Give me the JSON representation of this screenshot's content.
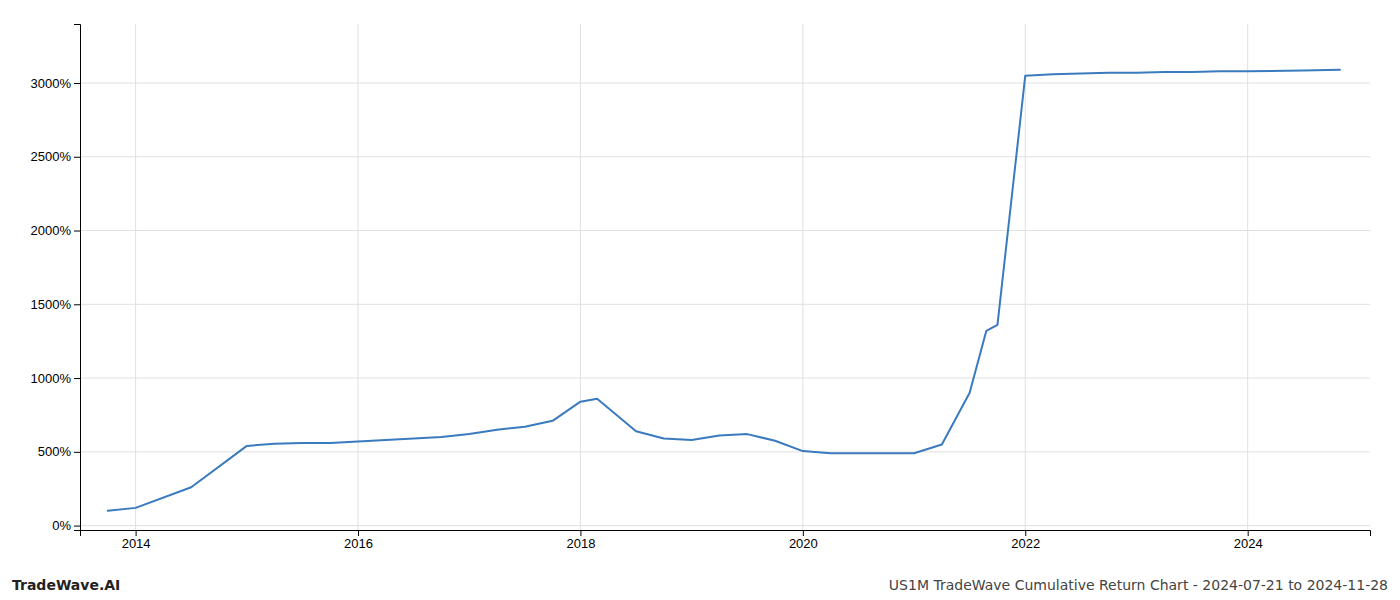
{
  "chart_data": {
    "type": "line",
    "x": [
      2013.75,
      2014.0,
      2014.5,
      2015.0,
      2015.25,
      2015.5,
      2015.75,
      2016.0,
      2016.25,
      2016.5,
      2016.75,
      2017.0,
      2017.25,
      2017.5,
      2017.75,
      2018.0,
      2018.15,
      2018.5,
      2018.75,
      2019.0,
      2019.25,
      2019.5,
      2019.75,
      2020.0,
      2020.25,
      2020.5,
      2020.75,
      2021.0,
      2021.25,
      2021.5,
      2021.65,
      2021.75,
      2022.0,
      2022.25,
      2022.5,
      2022.75,
      2023.0,
      2023.25,
      2023.5,
      2023.75,
      2024.0,
      2024.5,
      2024.83
    ],
    "values": [
      100,
      120,
      260,
      540,
      555,
      560,
      560,
      570,
      580,
      590,
      600,
      620,
      650,
      670,
      710,
      840,
      860,
      640,
      590,
      580,
      610,
      620,
      575,
      505,
      490,
      490,
      490,
      490,
      550,
      900,
      1320,
      1360,
      3050,
      3060,
      3065,
      3070,
      3070,
      3075,
      3075,
      3080,
      3080,
      3085,
      3090
    ],
    "color": "#3a7abf",
    "xlim": [
      2013.5,
      2025.1
    ],
    "ylim": [
      -30,
      3400
    ],
    "xticks": [
      2014,
      2016,
      2018,
      2020,
      2022,
      2024
    ],
    "yticks": [
      {
        "value": 0,
        "label": "0%"
      },
      {
        "value": 500,
        "label": "500%"
      },
      {
        "value": 1000,
        "label": "1000%"
      },
      {
        "value": 1500,
        "label": "1500%"
      },
      {
        "value": 2000,
        "label": "2000%"
      },
      {
        "value": 2500,
        "label": "2500%"
      },
      {
        "value": 3000,
        "label": "3000%"
      }
    ],
    "grid": true,
    "annotations": [
      "TradeWave.AI",
      "US1M TradeWave Cumulative Return Chart - 2024-07-21 to 2024-11-28"
    ]
  }
}
